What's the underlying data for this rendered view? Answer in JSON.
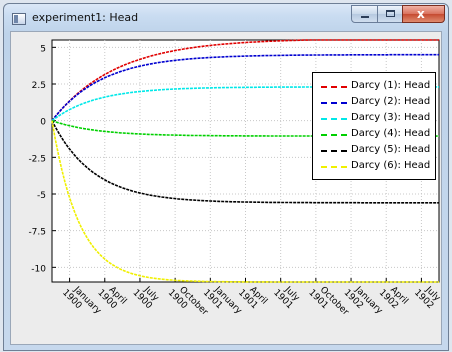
{
  "window": {
    "title": "experiment1: Head",
    "close_glyph": "x"
  },
  "icons": {
    "app": "window-app-icon",
    "minimize": "minimize-icon",
    "maximize": "maximize-icon",
    "close": "close-icon"
  },
  "colors": {
    "plot_bg": "#ffffff",
    "grid": "#c8c8c8"
  },
  "chart_data": {
    "type": "line",
    "title": "",
    "xlabel": "",
    "ylabel": "",
    "x_ticks": [
      "January 1900",
      "April 1900",
      "July 1900",
      "October 1900",
      "January 1901",
      "April 1901",
      "July 1901",
      "October 1901",
      "January 1902",
      "April 1902",
      "July 1902"
    ],
    "x_range": [
      -0.5,
      10.5
    ],
    "ylim": [
      -11,
      5.5
    ],
    "y_ticks": [
      "5",
      "2.5",
      "0",
      "-2.5",
      "-5",
      "-7.5",
      "-10"
    ],
    "y_tick_values": [
      5,
      2.5,
      0,
      -2.5,
      -5,
      -7.5,
      -10
    ],
    "grid": true,
    "legend_position": "top-right",
    "series": [
      {
        "name": "Darcy (1): Head",
        "color": "#e00000",
        "asymptote": 5.6,
        "rate": 0.55
      },
      {
        "name": "Darcy (2): Head",
        "color": "#0000d0",
        "asymptote": 4.5,
        "rate": 0.7
      },
      {
        "name": "Darcy (3): Head",
        "color": "#00e8e8",
        "asymptote": 2.3,
        "rate": 0.8
      },
      {
        "name": "Darcy (4): Head",
        "color": "#00d000",
        "asymptote": -1.05,
        "rate": 0.8
      },
      {
        "name": "Darcy (5): Head",
        "color": "#000000",
        "asymptote": -5.6,
        "rate": 0.85
      },
      {
        "name": "Darcy (6): Head",
        "color": "#f0f000",
        "asymptote": -11,
        "rate": 1.3
      }
    ]
  }
}
